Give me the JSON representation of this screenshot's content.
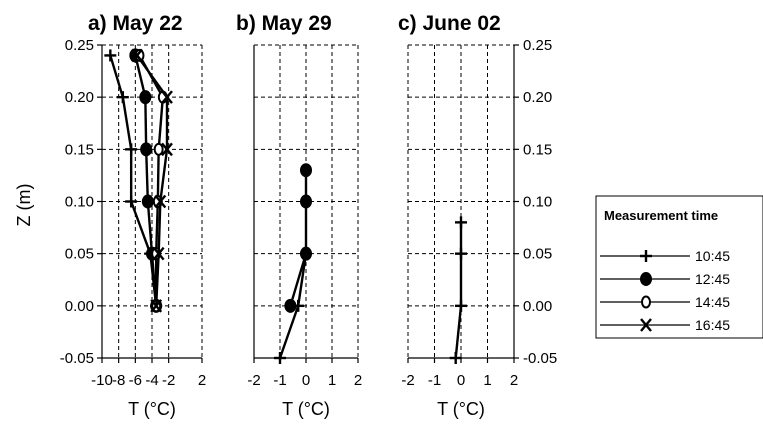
{
  "y_axis_label": "Z (m)",
  "chart_data": [
    {
      "type": "line",
      "title": "a) May 22",
      "xlabel": "T (°C)",
      "xlim": [
        -10,
        2
      ],
      "xticks": [
        -10,
        -8,
        -6,
        -4,
        -2,
        2
      ],
      "xtick_labels": [
        "-10",
        "-8",
        "-6",
        "-4",
        "-2",
        "2"
      ],
      "ylim": [
        -0.05,
        0.25
      ],
      "yticks": [
        -0.05,
        0.0,
        0.05,
        0.1,
        0.15,
        0.2,
        0.25
      ],
      "ytick_labels": [
        "-0.05",
        "0.00",
        "0.05",
        "0.10",
        "0.15",
        "0.20",
        "0.25"
      ],
      "grid": true,
      "series": [
        {
          "name": "10:45",
          "marker": "plus",
          "x": [
            -3.5,
            -4.2,
            -6.5,
            -6.5,
            -7.5,
            -9.0
          ],
          "y": [
            0.0,
            0.05,
            0.1,
            0.15,
            0.2,
            0.24
          ]
        },
        {
          "name": "12:45",
          "marker": "filled-circle",
          "x": [
            -3.5,
            -4.0,
            -4.5,
            -4.7,
            -4.8,
            -6.0
          ],
          "y": [
            0.0,
            0.05,
            0.1,
            0.15,
            0.2,
            0.24
          ]
        },
        {
          "name": "14:45",
          "marker": "open-circle",
          "x": [
            -3.5,
            -3.5,
            -3.3,
            -3.2,
            -2.7,
            -5.5
          ],
          "y": [
            0.0,
            0.05,
            0.1,
            0.15,
            0.2,
            0.24
          ]
        },
        {
          "name": "16:45",
          "marker": "cross",
          "x": [
            -3.5,
            -3.2,
            -3.0,
            -2.2,
            -2.2,
            -5.8
          ],
          "y": [
            0.0,
            0.05,
            0.1,
            0.15,
            0.2,
            0.24
          ]
        }
      ]
    },
    {
      "type": "line",
      "title": "b) May 29",
      "xlabel": "T (°C)",
      "xlim": [
        -2,
        2
      ],
      "xticks": [
        -2,
        -1,
        0,
        1,
        2
      ],
      "xtick_labels": [
        "-2",
        "-1",
        "0",
        "1",
        "2"
      ],
      "ylim": [
        -0.05,
        0.25
      ],
      "yticks": [
        -0.05,
        0.0,
        0.05,
        0.1,
        0.15,
        0.2,
        0.25
      ],
      "grid": true,
      "series": [
        {
          "name": "10:45",
          "marker": "plus",
          "x": [
            -1.0,
            -0.3,
            0.0
          ],
          "y": [
            -0.05,
            0.0,
            0.05
          ]
        },
        {
          "name": "12:45",
          "marker": "filled-circle",
          "x": [
            -0.6,
            0.0,
            0.0,
            0.0
          ],
          "y": [
            0.0,
            0.05,
            0.1,
            0.13
          ]
        }
      ]
    },
    {
      "type": "line",
      "title": "c) June 02",
      "xlabel": "T (°C)",
      "xlim": [
        -2,
        2
      ],
      "xticks": [
        -2,
        -1,
        0,
        1,
        2
      ],
      "xtick_labels": [
        "-2",
        "-1",
        "0",
        "1",
        "2"
      ],
      "ylim": [
        -0.05,
        0.25
      ],
      "yticks": [
        -0.05,
        0.0,
        0.05,
        0.1,
        0.15,
        0.2,
        0.25
      ],
      "ytick_labels": [
        "-0.05",
        "0.00",
        "0.05",
        "0.10",
        "0.15",
        "0.20",
        "0.25"
      ],
      "grid": true,
      "series": [
        {
          "name": "10:45",
          "marker": "plus",
          "x": [
            -0.2,
            0.0,
            0.0,
            0.0
          ],
          "y": [
            -0.05,
            0.0,
            0.05,
            0.08
          ]
        }
      ]
    }
  ],
  "legend": {
    "title": "Measurement time",
    "items": [
      {
        "label": "10:45",
        "marker": "plus"
      },
      {
        "label": "12:45",
        "marker": "filled-circle"
      },
      {
        "label": "14:45",
        "marker": "open-circle"
      },
      {
        "label": "16:45",
        "marker": "cross"
      }
    ]
  }
}
